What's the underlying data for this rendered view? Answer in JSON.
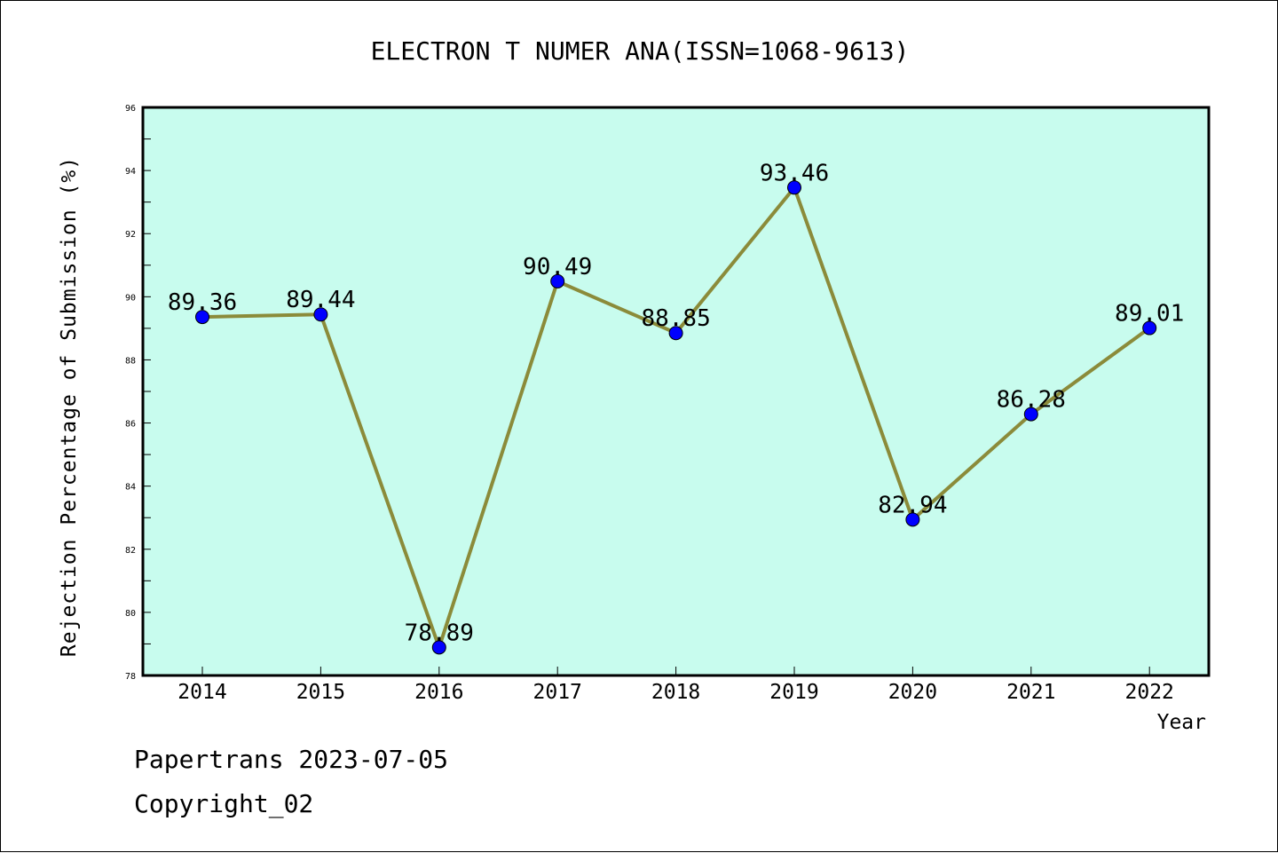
{
  "chart_data": {
    "type": "line",
    "title": "ELECTRON T NUMER ANA(ISSN=1068-9613)",
    "xlabel": "Year",
    "ylabel": "Rejection Percentage of Submission (%)",
    "categories": [
      "2014",
      "2015",
      "2016",
      "2017",
      "2018",
      "2019",
      "2020",
      "2021",
      "2022"
    ],
    "series": [
      {
        "values": [
          89.36,
          89.44,
          78.89,
          90.49,
          88.85,
          93.46,
          82.94,
          86.28,
          89.01
        ],
        "labels": [
          "89.36",
          "89.44",
          "78.89",
          "90.49",
          "88.85",
          "93.46",
          "82.94",
          "86.28",
          "89.01"
        ]
      }
    ],
    "ylim": [
      78,
      96
    ],
    "yticks": [
      78,
      80,
      82,
      84,
      86,
      88,
      90,
      92,
      94,
      96
    ],
    "ytick_labels": [
      "78",
      "80",
      "82",
      "84",
      "86",
      "88",
      "90",
      "92",
      "94",
      "96"
    ],
    "grid": false,
    "colors": {
      "plot_background": "#c8fcee",
      "line": "#8b8b3a",
      "marker": "#0000ff",
      "axes": "#000000"
    }
  },
  "footer": {
    "line1": "Papertrans 2023-07-05",
    "line2": "Copyright_02"
  }
}
